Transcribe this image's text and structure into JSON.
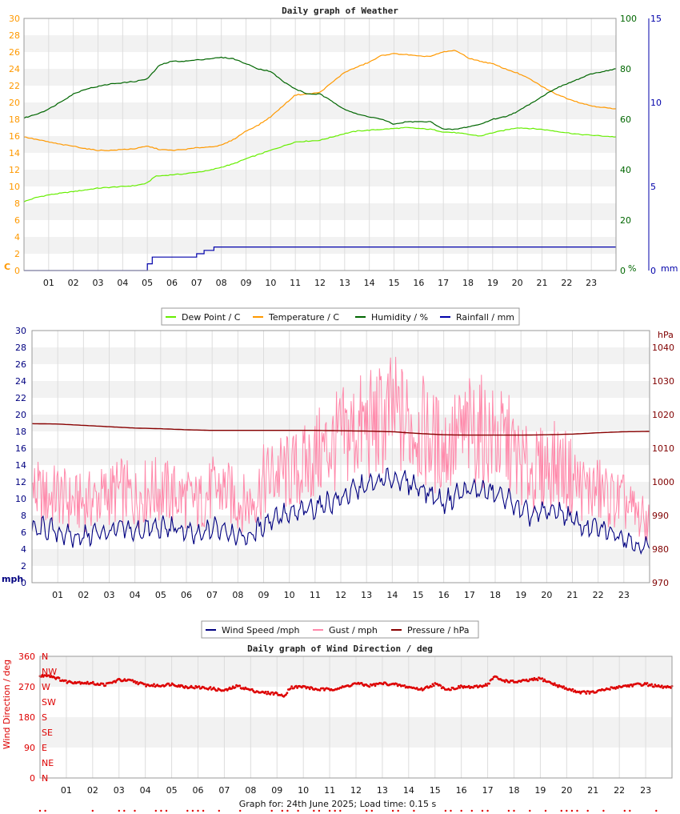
{
  "chart_data": [
    {
      "type": "line",
      "title": "Daily graph of Weather",
      "x_labels": [
        "01",
        "02",
        "03",
        "04",
        "05",
        "06",
        "07",
        "08",
        "09",
        "10",
        "11",
        "12",
        "13",
        "14",
        "15",
        "16",
        "17",
        "18",
        "19",
        "20",
        "21",
        "22",
        "23"
      ],
      "xlim": [
        0,
        24
      ],
      "axes": {
        "left": {
          "unit": "C",
          "ylim": [
            0,
            30
          ],
          "ticks": [
            0,
            2,
            4,
            6,
            8,
            10,
            12,
            14,
            16,
            18,
            20,
            22,
            24,
            26,
            28,
            30
          ],
          "color": "#ff9900"
        },
        "right1": {
          "unit": "%",
          "ylim": [
            0,
            100
          ],
          "ticks": [
            0,
            20,
            40,
            60,
            80,
            100
          ],
          "color": "#006600"
        },
        "right2": {
          "unit": "mm",
          "ylim": [
            0,
            15
          ],
          "ticks": [
            0,
            5,
            10,
            15
          ],
          "color": "#0000aa"
        }
      },
      "grid": true,
      "legend_position": "bottom",
      "series": [
        {
          "name": "Dew Point / C",
          "axis": "left",
          "color": "#66ee00",
          "x": [
            0,
            0.5,
            1,
            1.5,
            2,
            2.5,
            3,
            3.5,
            4,
            4.5,
            5,
            5.3,
            6,
            6.5,
            7,
            7.5,
            8,
            8.5,
            9,
            9.5,
            10,
            10.5,
            11,
            11.5,
            12,
            12.5,
            13,
            13.5,
            14,
            14.5,
            15,
            15.5,
            16,
            16.5,
            17,
            17.5,
            18,
            18.5,
            19,
            19.5,
            20,
            20.5,
            21,
            21.5,
            22,
            22.5,
            23,
            23.5,
            24
          ],
          "values": [
            8.2,
            8.7,
            9.0,
            9.2,
            9.4,
            9.6,
            9.8,
            9.9,
            10.0,
            10.1,
            10.4,
            11.2,
            11.4,
            11.5,
            11.7,
            11.9,
            12.3,
            12.7,
            13.3,
            13.8,
            14.3,
            14.8,
            15.3,
            15.4,
            15.5,
            15.9,
            16.3,
            16.6,
            16.7,
            16.8,
            16.9,
            17.0,
            16.9,
            16.8,
            16.5,
            16.4,
            16.2,
            16.0,
            16.4,
            16.7,
            17.0,
            16.9,
            16.8,
            16.6,
            16.4,
            16.2,
            16.1,
            16.0,
            15.9
          ]
        },
        {
          "name": "Temperature / C",
          "axis": "left",
          "color": "#ff9900",
          "x": [
            0,
            0.5,
            1,
            1.5,
            2,
            2.5,
            3,
            3.5,
            4,
            4.5,
            5,
            5.5,
            6,
            6.5,
            7,
            7.5,
            8,
            8.5,
            9,
            9.5,
            10,
            10.5,
            11,
            11.5,
            12,
            12.5,
            13,
            13.5,
            14,
            14.5,
            15,
            15.5,
            16,
            16.5,
            17,
            17.5,
            18,
            18.5,
            19,
            19.5,
            20,
            20.5,
            21,
            21.5,
            22,
            22.5,
            23,
            23.5,
            24
          ],
          "values": [
            15.9,
            15.6,
            15.3,
            15.0,
            14.8,
            14.5,
            14.3,
            14.3,
            14.4,
            14.5,
            14.8,
            14.4,
            14.3,
            14.4,
            14.6,
            14.7,
            14.9,
            15.6,
            16.6,
            17.3,
            18.3,
            19.6,
            20.9,
            21.0,
            21.2,
            22.4,
            23.6,
            24.2,
            24.8,
            25.6,
            25.8,
            25.7,
            25.5,
            25.5,
            26.0,
            26.2,
            25.3,
            24.9,
            24.6,
            24.0,
            23.5,
            22.8,
            21.9,
            21.1,
            20.5,
            20.0,
            19.6,
            19.4,
            19.2
          ]
        },
        {
          "name": "Humidity / %",
          "axis": "right1",
          "color": "#006600",
          "x": [
            0,
            0.5,
            1,
            1.5,
            2,
            2.5,
            3,
            3.5,
            4,
            4.5,
            5,
            5.5,
            6,
            6.5,
            7,
            7.5,
            8,
            8.5,
            9,
            9.5,
            10,
            10.5,
            11,
            11.5,
            12,
            12.5,
            13,
            13.5,
            14,
            14.5,
            15,
            15.5,
            16,
            16.5,
            17,
            17.5,
            18,
            18.5,
            19,
            19.5,
            20,
            20.5,
            21,
            21.5,
            22,
            22.5,
            23,
            23.5,
            24
          ],
          "values": [
            60.5,
            62,
            64,
            67,
            70,
            72,
            73,
            74,
            74.5,
            75,
            76,
            81.5,
            83,
            83,
            83.5,
            84,
            84.5,
            84,
            82,
            80,
            79,
            75,
            72,
            70,
            70,
            67,
            64,
            62,
            61,
            60,
            58,
            59,
            59,
            59,
            56,
            56,
            57,
            58,
            60,
            61,
            63,
            66,
            69,
            72,
            74,
            76,
            78,
            79,
            80
          ]
        },
        {
          "name": "Rainfall / mm",
          "axis": "right2",
          "color": "#0000aa",
          "x": [
            0,
            1,
            2,
            3,
            4,
            4.8,
            5.0,
            5.2,
            5.5,
            6,
            6.5,
            7,
            7.3,
            7.7,
            8,
            9,
            10,
            11,
            12,
            13,
            14,
            15,
            16,
            17,
            18,
            19,
            20,
            21,
            22,
            23,
            24
          ],
          "values": [
            0,
            0,
            0,
            0,
            0,
            0,
            0.4,
            0.8,
            0.8,
            0.8,
            0.8,
            1.0,
            1.2,
            1.4,
            1.4,
            1.4,
            1.4,
            1.4,
            1.4,
            1.4,
            1.4,
            1.4,
            1.4,
            1.4,
            1.4,
            1.4,
            1.4,
            1.4,
            1.4,
            1.4,
            1.4
          ]
        }
      ]
    },
    {
      "type": "line",
      "x_labels": [
        "01",
        "02",
        "03",
        "04",
        "05",
        "06",
        "07",
        "08",
        "09",
        "10",
        "11",
        "12",
        "13",
        "14",
        "15",
        "16",
        "17",
        "18",
        "19",
        "20",
        "21",
        "22",
        "23"
      ],
      "xlim": [
        0,
        24
      ],
      "axes": {
        "left": {
          "unit": "mph",
          "ylim": [
            0,
            30
          ],
          "ticks": [
            0,
            2,
            4,
            6,
            8,
            10,
            12,
            14,
            16,
            18,
            20,
            22,
            24,
            26,
            28,
            30
          ],
          "color": "#000080"
        },
        "right": {
          "unit": "hPa",
          "ylim": [
            970,
            1045
          ],
          "ticks": [
            970,
            980,
            990,
            1000,
            1010,
            1020,
            1030,
            1040
          ],
          "color": "#800000"
        }
      },
      "grid": true,
      "legend_position": "bottom",
      "series": [
        {
          "name": "Wind Speed /mph",
          "axis": "left",
          "color": "#000080",
          "x": [
            0,
            0.5,
            1,
            1.5,
            2,
            2.5,
            3,
            3.5,
            4,
            4.5,
            5,
            5.5,
            6,
            6.5,
            7,
            7.5,
            8,
            8.5,
            9,
            9.5,
            10,
            10.5,
            11,
            11.5,
            12,
            12.5,
            13,
            13.5,
            14,
            14.5,
            15,
            15.5,
            16,
            16.5,
            17,
            17.5,
            18,
            18.5,
            19,
            19.5,
            20,
            20.5,
            21,
            21.5,
            22,
            22.5,
            23,
            23.5,
            24
          ],
          "values": [
            6,
            6.5,
            6.0,
            5.5,
            5.5,
            6.0,
            6.0,
            6.5,
            6.0,
            6.5,
            6.5,
            6.5,
            6.0,
            5.5,
            6.5,
            6.5,
            5.5,
            5.5,
            7.0,
            8.0,
            8.0,
            8.5,
            9.0,
            9.5,
            10.0,
            11.0,
            11.5,
            12.0,
            12.5,
            12.0,
            11.5,
            10.5,
            9.5,
            10.5,
            11.0,
            11.0,
            10.5,
            10.0,
            8.5,
            8.0,
            8.5,
            8.5,
            7.5,
            6.5,
            6.5,
            6.0,
            5.5,
            4.5,
            4.0
          ]
        },
        {
          "name": "Gust / mph",
          "axis": "left",
          "color": "#ff88aa",
          "x": [
            0,
            0.5,
            1,
            1.5,
            2,
            2.5,
            3,
            3.5,
            4,
            4.5,
            5,
            5.5,
            6,
            6.5,
            7,
            7.5,
            8,
            8.5,
            9,
            9.5,
            10,
            10.5,
            11,
            11.5,
            12,
            12.5,
            13,
            13.5,
            14,
            14.5,
            15,
            15.5,
            16,
            16.5,
            17,
            17.5,
            18,
            18.5,
            19,
            19.5,
            20,
            20.5,
            21,
            21.5,
            22,
            22.5,
            23,
            23.5,
            24
          ],
          "values": [
            11,
            10,
            10.5,
            9.5,
            9.5,
            10,
            10.5,
            11,
            10,
            11,
            11,
            10.5,
            10,
            9.5,
            11,
            11,
            9.5,
            9.5,
            12,
            13,
            13,
            13.5,
            15,
            16,
            17,
            18,
            18.5,
            19,
            20,
            19,
            18.5,
            17,
            16,
            17,
            18,
            18,
            17,
            16.5,
            14,
            13,
            14,
            14,
            12.5,
            11,
            11,
            10,
            9.5,
            8,
            7
          ]
        },
        {
          "name": "Pressure / hPa",
          "axis": "right",
          "color": "#880000",
          "x": [
            0,
            1,
            2,
            3,
            4,
            5,
            6,
            7,
            8,
            9,
            10,
            11,
            12,
            13,
            14,
            15,
            16,
            17,
            18,
            19,
            20,
            21,
            22,
            23,
            24
          ],
          "values": [
            1017.3,
            1017.2,
            1016.8,
            1016.4,
            1016.0,
            1015.8,
            1015.5,
            1015.3,
            1015.3,
            1015.3,
            1015.3,
            1015.3,
            1015.2,
            1015.1,
            1014.9,
            1014.4,
            1014.0,
            1013.9,
            1013.9,
            1013.9,
            1014.0,
            1014.2,
            1014.6,
            1014.9,
            1015.0
          ]
        }
      ]
    },
    {
      "type": "scatter",
      "title": "Daily graph of Wind Direction / deg",
      "ylabel": "Wind Direction / deg",
      "x_labels": [
        "01",
        "02",
        "03",
        "04",
        "05",
        "06",
        "07",
        "08",
        "09",
        "10",
        "11",
        "12",
        "13",
        "14",
        "15",
        "16",
        "17",
        "18",
        "19",
        "20",
        "21",
        "22",
        "23"
      ],
      "xlim": [
        0,
        24
      ],
      "ylim": [
        0,
        360
      ],
      "yticks": [
        0,
        90,
        180,
        270,
        360
      ],
      "compass_labels": [
        "N",
        "NE",
        "E",
        "SE",
        "S",
        "SW",
        "W",
        "NW",
        "N"
      ],
      "grid": true,
      "series": [
        {
          "name": "Wind Direction",
          "color": "#dd0000",
          "x": [
            0,
            0.25,
            0.5,
            0.75,
            1,
            1.5,
            2,
            2.5,
            3,
            3.5,
            4,
            4.5,
            5,
            5.5,
            6,
            6.5,
            7,
            7.5,
            8,
            8.5,
            9,
            9.25,
            9.5,
            10,
            10.5,
            11,
            11.5,
            12,
            12.5,
            13,
            13.5,
            14,
            14.5,
            15,
            15.5,
            16,
            16.5,
            17,
            17.25,
            17.5,
            18,
            18.5,
            19,
            19.5,
            20,
            20.5,
            21,
            21.5,
            22,
            22.5,
            23,
            23.5,
            24
          ],
          "values": [
            300,
            305,
            300,
            292,
            285,
            283,
            280,
            276,
            290,
            287,
            275,
            273,
            278,
            270,
            268,
            265,
            258,
            272,
            260,
            252,
            250,
            240,
            268,
            270,
            262,
            262,
            268,
            280,
            273,
            280,
            276,
            269,
            262,
            278,
            262,
            270,
            268,
            277,
            300,
            290,
            284,
            288,
            294,
            278,
            264,
            254,
            253,
            262,
            270,
            275,
            278,
            270,
            268
          ]
        }
      ]
    }
  ],
  "footer": {
    "text": "Graph for: 24th June 2025; Load time: 0.15 s"
  }
}
